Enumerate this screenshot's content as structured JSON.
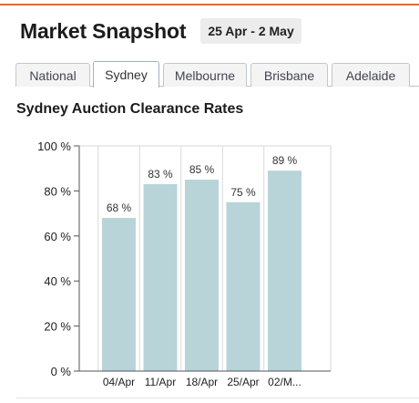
{
  "header": {
    "title": "Market Snapshot",
    "date_range": "25 Apr - 2 May"
  },
  "tabs": [
    {
      "label": "National",
      "active": false
    },
    {
      "label": "Sydney",
      "active": true
    },
    {
      "label": "Melbourne",
      "active": false
    },
    {
      "label": "Brisbane",
      "active": false
    },
    {
      "label": "Adelaide",
      "active": false
    }
  ],
  "section": {
    "title": "Sydney Auction Clearance Rates"
  },
  "colors": {
    "bar": "#b9d4d8",
    "accent_rule": "#e06a3c"
  },
  "chart_data": {
    "type": "bar",
    "categories": [
      "04/Apr",
      "11/Apr",
      "18/Apr",
      "25/Apr",
      "02/M..."
    ],
    "values": [
      68,
      83,
      85,
      75,
      89
    ],
    "value_labels": [
      "68 %",
      "83 %",
      "85 %",
      "75 %",
      "89 %"
    ],
    "yticks": [
      0,
      20,
      40,
      60,
      80,
      100
    ],
    "ytick_labels": [
      "0 %",
      "20 %",
      "40 %",
      "60 %",
      "80 %",
      "100 %"
    ],
    "ylim": [
      0,
      100
    ],
    "grid": "vertical",
    "title": "",
    "xlabel": "",
    "ylabel": ""
  }
}
